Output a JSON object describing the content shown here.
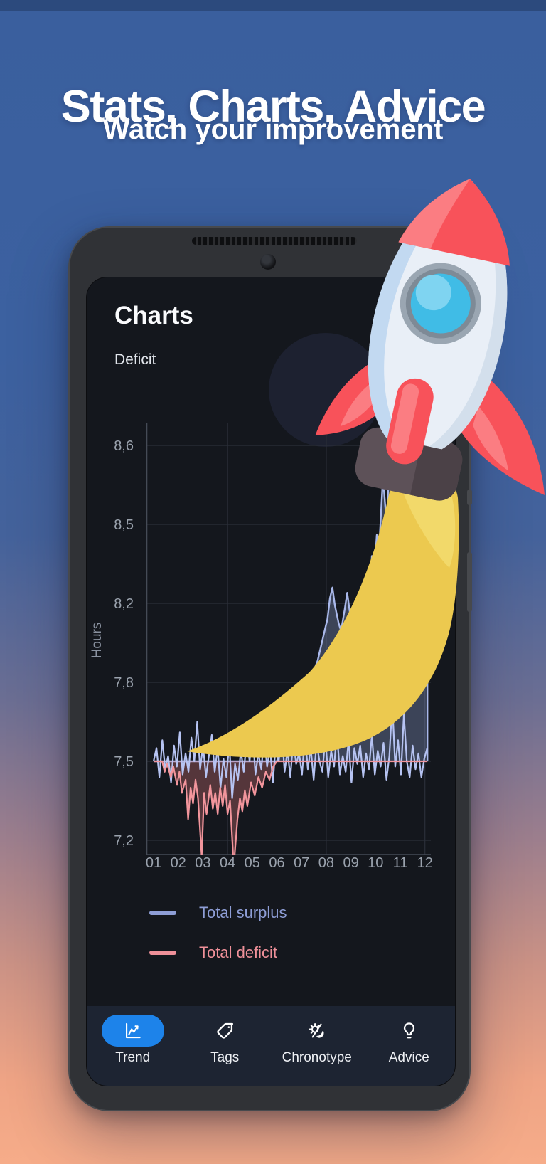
{
  "hero": {
    "title": "Stats, Charts, Advice",
    "subtitle": "Watch your improvement"
  },
  "phone": {
    "screen_title": "Charts",
    "chart_title": "Deficit"
  },
  "nav": {
    "items": [
      {
        "label": "Trend",
        "icon": "trend-chart-icon",
        "active": true
      },
      {
        "label": "Tags",
        "icon": "tag-icon",
        "active": false
      },
      {
        "label": "Chronotype",
        "icon": "chronotype-icon",
        "active": false
      },
      {
        "label": "Advice",
        "icon": "lightbulb-icon",
        "active": false
      }
    ]
  },
  "colors": {
    "hero_background_top": "#3a5f9e",
    "hero_background_bottom": "#f6ac89",
    "screen_background": "#14171d",
    "navbar_background": "#1d2432",
    "active_pill_blue": "#1d83ea",
    "surplus_blue": "#8e9ed6",
    "deficit_pink": "#ef9099",
    "rocket_red": "#f8525a",
    "rocket_flame_yellow": "#ecc94f"
  },
  "chart_data": {
    "type": "line",
    "title": "Deficit",
    "ylabel": "Hours",
    "x_tick_labels": [
      "01",
      "02",
      "03",
      "04",
      "05",
      "06",
      "07",
      "08",
      "09",
      "10",
      "11",
      "12"
    ],
    "y_tick_labels": [
      "8,6",
      "8,5",
      "8,2",
      "7,8",
      "7,5",
      "7,2"
    ],
    "y_ticks_bottom_up": [
      7.2,
      7.5,
      7.8,
      8.2,
      8.5,
      8.6
    ],
    "baseline": 7.5,
    "grid_months": [
      4,
      8,
      12
    ],
    "grid": true,
    "legend_position": "bottom-left",
    "legend": [
      {
        "label": "Total surplus",
        "color": "#8e9ed6"
      },
      {
        "label": "Total deficit",
        "color": "#ef9099"
      }
    ],
    "series": [
      {
        "name": "daily-hours",
        "kind": "line",
        "color": "#b6c3f2",
        "x_start": 1,
        "x_step": 0.118,
        "values": [
          7.5,
          7.55,
          7.44,
          7.58,
          7.47,
          7.52,
          7.42,
          7.56,
          7.48,
          7.61,
          7.45,
          7.53,
          7.46,
          7.59,
          7.5,
          7.65,
          7.47,
          7.56,
          7.44,
          7.52,
          7.6,
          7.46,
          7.55,
          7.4,
          7.51,
          7.44,
          7.57,
          7.36,
          7.49,
          7.43,
          7.54,
          7.46,
          7.58,
          7.5,
          7.61,
          7.45,
          7.53,
          7.47,
          7.59,
          7.48,
          7.55,
          7.42,
          7.57,
          7.5,
          7.62,
          7.46,
          7.54,
          7.44,
          7.58,
          7.49,
          7.53,
          7.45,
          7.6,
          7.47,
          7.55,
          7.43,
          7.57,
          7.5,
          7.46,
          7.59,
          7.44,
          7.54,
          7.48,
          7.61,
          7.45,
          7.52,
          7.46,
          7.58,
          7.42,
          7.55,
          7.49,
          7.56,
          7.44,
          7.53,
          7.47,
          7.6,
          7.45,
          7.54,
          7.48,
          7.57,
          7.43,
          7.52,
          7.72,
          7.48,
          7.58,
          7.45,
          7.68,
          7.5,
          7.44,
          7.56,
          7.47,
          7.53,
          7.44,
          7.51,
          7.55
        ]
      },
      {
        "name": "total-surplus",
        "kind": "area",
        "color": "#a9b8ea",
        "fill": "rgba(136,152,200,0.35)",
        "points": [
          [
            1,
            7.5
          ],
          [
            6.0,
            7.5
          ],
          [
            6.15,
            7.55
          ],
          [
            6.3,
            7.6
          ],
          [
            6.45,
            7.67
          ],
          [
            6.55,
            7.63
          ],
          [
            6.7,
            7.74
          ],
          [
            6.8,
            7.7
          ],
          [
            6.95,
            7.78
          ],
          [
            7.05,
            7.74
          ],
          [
            7.2,
            7.81
          ],
          [
            7.35,
            7.77
          ],
          [
            7.5,
            7.86
          ],
          [
            7.65,
            7.91
          ],
          [
            7.8,
            7.99
          ],
          [
            7.95,
            8.07
          ],
          [
            8.05,
            8.12
          ],
          [
            8.15,
            8.22
          ],
          [
            8.25,
            8.26
          ],
          [
            8.35,
            8.19
          ],
          [
            8.5,
            8.1
          ],
          [
            8.6,
            8.06
          ],
          [
            8.75,
            8.17
          ],
          [
            8.85,
            8.24
          ],
          [
            8.95,
            8.16
          ],
          [
            9.1,
            8.11
          ],
          [
            9.2,
            8.17
          ],
          [
            9.35,
            8.08
          ],
          [
            9.5,
            8.0
          ],
          [
            9.6,
            8.09
          ],
          [
            9.75,
            8.22
          ],
          [
            9.85,
            8.38
          ],
          [
            9.95,
            8.32
          ],
          [
            10.05,
            8.46
          ],
          [
            10.15,
            8.42
          ],
          [
            10.3,
            8.56
          ],
          [
            10.45,
            8.5
          ],
          [
            10.6,
            8.66
          ],
          [
            10.75,
            8.85
          ],
          [
            11.0,
            8.95
          ],
          [
            12.1,
            8.9
          ],
          [
            12.1,
            7.5
          ]
        ]
      },
      {
        "name": "total-deficit",
        "kind": "area",
        "color": "#f2959c",
        "fill": "rgba(225,120,125,0.32)",
        "points": [
          [
            1,
            7.5
          ],
          [
            1.35,
            7.5
          ],
          [
            1.45,
            7.46
          ],
          [
            1.55,
            7.49
          ],
          [
            1.7,
            7.44
          ],
          [
            1.8,
            7.48
          ],
          [
            1.95,
            7.41
          ],
          [
            2.05,
            7.46
          ],
          [
            2.15,
            7.38
          ],
          [
            2.3,
            7.43
          ],
          [
            2.4,
            7.28
          ],
          [
            2.5,
            7.4
          ],
          [
            2.6,
            7.34
          ],
          [
            2.7,
            7.43
          ],
          [
            2.8,
            7.36
          ],
          [
            2.95,
            7.14
          ],
          [
            3.05,
            7.38
          ],
          [
            3.15,
            7.3
          ],
          [
            3.3,
            7.41
          ],
          [
            3.4,
            7.32
          ],
          [
            3.5,
            7.38
          ],
          [
            3.6,
            7.3
          ],
          [
            3.7,
            7.4
          ],
          [
            3.8,
            7.33
          ],
          [
            3.9,
            7.41
          ],
          [
            4.0,
            7.3
          ],
          [
            4.1,
            7.35
          ],
          [
            4.25,
            7.1
          ],
          [
            4.4,
            7.28
          ],
          [
            4.5,
            7.36
          ],
          [
            4.6,
            7.31
          ],
          [
            4.7,
            7.39
          ],
          [
            4.8,
            7.33
          ],
          [
            4.95,
            7.42
          ],
          [
            5.1,
            7.37
          ],
          [
            5.25,
            7.44
          ],
          [
            5.4,
            7.4
          ],
          [
            5.55,
            7.46
          ],
          [
            5.7,
            7.43
          ],
          [
            5.85,
            7.48
          ],
          [
            6.0,
            7.5
          ],
          [
            12.1,
            7.5
          ]
        ]
      }
    ]
  }
}
